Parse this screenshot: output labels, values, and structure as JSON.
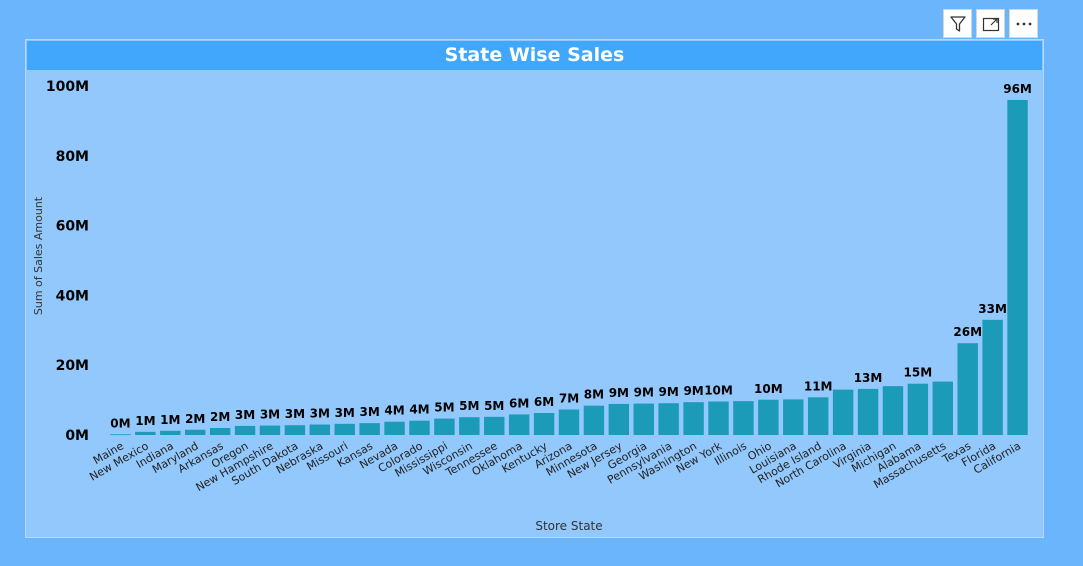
{
  "toolbar": {
    "filter_icon": "filter-icon",
    "focus_icon": "focus-mode-icon",
    "more_icon": "more-options-icon"
  },
  "colors": {
    "background": "#6bb5fc",
    "plot_bg": "#93c8fc",
    "title_bg": "#41a7fc",
    "bar": "#1b9bb8",
    "text": "#000000"
  },
  "chart_data": {
    "type": "bar",
    "title": "State Wise Sales",
    "xlabel": "Store State",
    "ylabel": "Sum of Sales Amount",
    "ylim": [
      0,
      100
    ],
    "yticks": [
      0,
      20,
      40,
      60,
      80,
      100
    ],
    "ytick_labels": [
      "0M",
      "20M",
      "40M",
      "60M",
      "80M",
      "100M"
    ],
    "grid": false,
    "categories": [
      "Maine",
      "New Mexico",
      "Indiana",
      "Maryland",
      "Arkansas",
      "Oregon",
      "New Hampshire",
      "South Dakota",
      "Nebraska",
      "Missouri",
      "Kansas",
      "Nevada",
      "Colorado",
      "Mississippi",
      "Wisconsin",
      "Tennessee",
      "Oklahoma",
      "Kentucky",
      "Arizona",
      "Minnesota",
      "New Jersey",
      "Georgia",
      "Pennsylvania",
      "Washington",
      "New York",
      "Illinois",
      "Ohio",
      "Louisiana",
      "Rhode Island",
      "North Carolina",
      "Virginia",
      "Michigan",
      "Alabama",
      "Massachusetts",
      "Texas",
      "Florida",
      "California"
    ],
    "values": [
      0.2,
      0.9,
      1.2,
      1.5,
      2.0,
      2.6,
      2.7,
      2.8,
      3.0,
      3.2,
      3.4,
      3.8,
      4.1,
      4.7,
      5.1,
      5.2,
      5.9,
      6.3,
      7.3,
      8.4,
      8.9,
      9.0,
      9.1,
      9.4,
      9.6,
      9.7,
      10.1,
      10.2,
      10.8,
      13.0,
      13.2,
      14.0,
      14.7,
      15.3,
      26.3,
      33.0,
      96.0
    ],
    "data_labels": [
      "0M",
      "1M",
      "1M",
      "2M",
      "2M",
      "3M",
      "3M",
      "3M",
      "3M",
      "3M",
      "3M",
      "4M",
      "4M",
      "5M",
      "5M",
      "5M",
      "6M",
      "6M",
      "7M",
      "8M",
      "9M",
      "9M",
      "9M",
      "9M",
      "10M",
      "",
      "10M",
      "",
      "11M",
      "",
      "13M",
      "",
      "15M",
      "",
      "26M",
      "33M",
      "96M"
    ]
  }
}
